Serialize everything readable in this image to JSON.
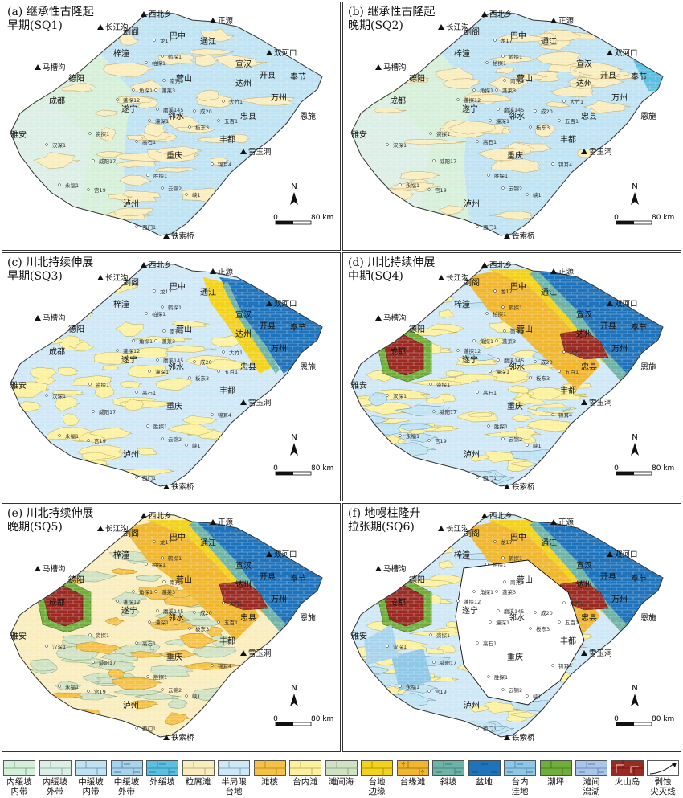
{
  "panels": [
    {
      "id": "a",
      "title": "(a) 继承性古隆起\n早期(SQ1)",
      "stage": "sq1"
    },
    {
      "id": "b",
      "title": "(b) 继承性古隆起\n晚期(SQ2)",
      "stage": "sq2"
    },
    {
      "id": "c",
      "title": "(c) 川北持续伸展\n早期(SQ3)",
      "stage": "sq3"
    },
    {
      "id": "d",
      "title": "(d) 川北持续伸展\n中期(SQ4)",
      "stage": "sq4"
    },
    {
      "id": "e",
      "title": "(e) 川北持续伸展\n晚期(SQ5)",
      "stage": "sq5"
    },
    {
      "id": "f",
      "title": "(f) 地幔柱隆升\n拉张期(SQ6)",
      "stage": "sq6"
    }
  ],
  "cities": [
    "剑阁",
    "巴中",
    "通江",
    "梓潼",
    "德阳",
    "营山",
    "宣汉",
    "达州",
    "开县",
    "奉节",
    "万州",
    "成都",
    "遂宁",
    "邻水",
    "忠县",
    "恩施",
    "雅安",
    "丰都",
    "重庆",
    "泸州"
  ],
  "outcrops": [
    "西北乡",
    "正源",
    "长江沟",
    "双河口",
    "马槽沟",
    "雪玉洞",
    "铁索桥"
  ],
  "wells": [
    "龙17",
    "鹤探1",
    "柏探1",
    "南充1",
    "蓬莱3",
    "蓬探12",
    "角探1",
    "磨溪145",
    "潼深1",
    "成20",
    "板东3",
    "五百1",
    "资探1",
    "汉深1",
    "高石1",
    "威阳17",
    "永福1",
    "云锦2",
    "胜探1",
    "宫19",
    "峡1",
    "西门1",
    "锦耳4",
    "大竹1"
  ],
  "scale": {
    "north": "N",
    "zero": "0",
    "distance": "80 km"
  },
  "legend": [
    {
      "label": "内缓坡\n内带",
      "color": "#d6efd9",
      "pattern": "brick",
      "ink": "#6f9a76"
    },
    {
      "label": "内缓坡\n外带",
      "color": "#dcefe6",
      "pattern": "brick",
      "ink": "#7fa39a"
    },
    {
      "label": "中缓坡\n内带",
      "color": "#bfe3f2",
      "pattern": "brick",
      "ink": "#5f8fa8"
    },
    {
      "label": "中缓坡\n外带",
      "color": "#a7d3ec",
      "pattern": "brickdash",
      "ink": "#4d7f9c"
    },
    {
      "label": "外缓坡",
      "color": "#5bbfe0",
      "pattern": "brickdash",
      "ink": "#2f7fa3"
    },
    {
      "label": "粒屑滩",
      "color": "#f9edbe",
      "pattern": "brick",
      "ink": "#b7a06a"
    },
    {
      "label": "半局限\n台地",
      "color": "#cfe8f6",
      "pattern": "brick",
      "ink": "#6d97b3"
    },
    {
      "label": "滩核",
      "color": "#f5c246",
      "pattern": "brick",
      "ink": "#a6801f"
    },
    {
      "label": "台内滩",
      "color": "#fbf1a0",
      "pattern": "brick",
      "ink": "#b3a54e"
    },
    {
      "label": "滩间海",
      "color": "#cfe3c4",
      "pattern": "brick",
      "ink": "#7f9c72"
    },
    {
      "label": "台地\n边缘",
      "color": "#f2d21a",
      "pattern": "brick",
      "ink": "#9c8610"
    },
    {
      "label": "台缘滩",
      "color": "#f0b62e",
      "pattern": "arrows",
      "ink": "#8f6a12"
    },
    {
      "label": "斜坡",
      "color": "#6eb3a7",
      "pattern": "brickdash",
      "ink": "#3b7d73"
    },
    {
      "label": "盆地",
      "color": "#1f73bb",
      "pattern": "dash",
      "ink": "#0f4f87"
    },
    {
      "label": "台内\n洼地",
      "color": "#8fc7e6",
      "pattern": "brickdash",
      "ink": "#43809f"
    },
    {
      "label": "潮坪",
      "color": "#6fae3a",
      "pattern": "brick",
      "ink": "#3c6e17"
    },
    {
      "label": "滩间\n潟湖",
      "color": "#a9c6e8",
      "pattern": "brickdash",
      "ink": "#5a7eaa"
    },
    {
      "label": "火山岛",
      "color": "#9b2b22",
      "pattern": "step",
      "ink": "#5e1510"
    },
    {
      "label": "剥蚀\n尖灭线",
      "color": "#ffffff",
      "pattern": "pinch",
      "ink": "#111111"
    }
  ]
}
